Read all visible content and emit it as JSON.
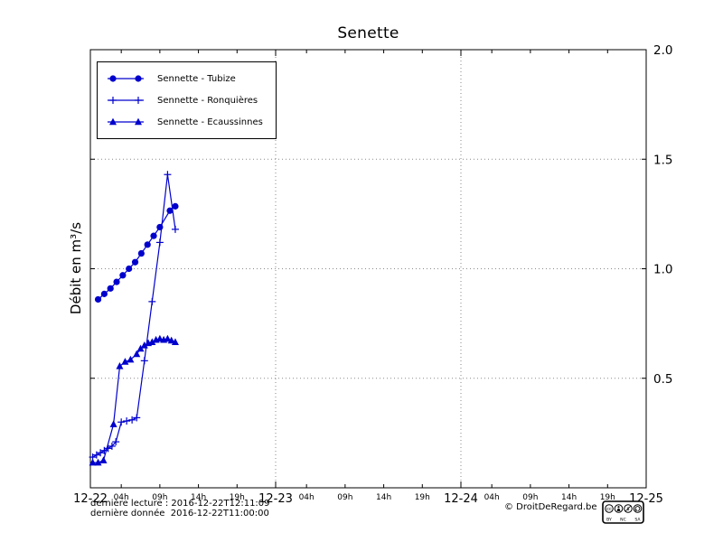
{
  "title": "Senette",
  "y_axis_label": "Débit en m³/s",
  "colors": {
    "series_blue": "#0000cd",
    "grid": "#8a8a8a",
    "axis": "#000000",
    "background": "#ffffff"
  },
  "footer": {
    "line1": "dernière lecture : 2016-12-22T12:11:09",
    "line2": "dernière donnée  2016-12-22T11:00:00",
    "copyright": "© DroitDeRegard.be",
    "license": {
      "by": "BY",
      "nc": "NC",
      "sa": "SA",
      "cc": "cc"
    }
  },
  "chart_data": {
    "type": "line",
    "title": "Senette",
    "ylabel": "Débit en m³/s",
    "x_unit": "hours since 2016-12-22 00:00",
    "xlim_hours": [
      0,
      72
    ],
    "ylim": [
      0,
      2
    ],
    "grid": true,
    "legend_position": "top-left",
    "x_major_ticks": [
      {
        "hour": 0,
        "label": "12-22"
      },
      {
        "hour": 24,
        "label": "12-23"
      },
      {
        "hour": 48,
        "label": "12-24"
      },
      {
        "hour": 72,
        "label": "12-25"
      }
    ],
    "x_minor_ticks": [
      {
        "hour": 4,
        "label": "04h"
      },
      {
        "hour": 9,
        "label": "09h"
      },
      {
        "hour": 14,
        "label": "14h"
      },
      {
        "hour": 19,
        "label": "19h"
      },
      {
        "hour": 28,
        "label": "04h"
      },
      {
        "hour": 33,
        "label": "09h"
      },
      {
        "hour": 38,
        "label": "14h"
      },
      {
        "hour": 43,
        "label": "19h"
      },
      {
        "hour": 52,
        "label": "04h"
      },
      {
        "hour": 57,
        "label": "09h"
      },
      {
        "hour": 62,
        "label": "14h"
      },
      {
        "hour": 67,
        "label": "19h"
      }
    ],
    "y_ticks": [
      {
        "value": 0.5,
        "label": "0.5"
      },
      {
        "value": 1.0,
        "label": "1.0"
      },
      {
        "value": 1.5,
        "label": "1.5"
      },
      {
        "value": 2.0,
        "label": "2.0"
      }
    ],
    "series": [
      {
        "name": "Sennette - Tubize",
        "marker": "circle",
        "color": "#0000cd",
        "points": [
          [
            1.0,
            0.86
          ],
          [
            1.8,
            0.885
          ],
          [
            2.6,
            0.91
          ],
          [
            3.4,
            0.94
          ],
          [
            4.2,
            0.97
          ],
          [
            5.0,
            1.0
          ],
          [
            5.8,
            1.03
          ],
          [
            6.6,
            1.07
          ],
          [
            7.4,
            1.11
          ],
          [
            8.2,
            1.15
          ],
          [
            9.0,
            1.19
          ],
          [
            10.3,
            1.265
          ],
          [
            11.0,
            1.285
          ]
        ]
      },
      {
        "name": "Sennette - Ronquières",
        "marker": "plus",
        "color": "#0000cd",
        "points": [
          [
            0.3,
            0.14
          ],
          [
            0.8,
            0.15
          ],
          [
            1.3,
            0.16
          ],
          [
            1.8,
            0.17
          ],
          [
            2.3,
            0.18
          ],
          [
            2.8,
            0.19
          ],
          [
            3.3,
            0.21
          ],
          [
            4.0,
            0.3
          ],
          [
            4.7,
            0.305
          ],
          [
            5.4,
            0.31
          ],
          [
            6.0,
            0.32
          ],
          [
            7.0,
            0.58
          ],
          [
            8.0,
            0.85
          ],
          [
            9.0,
            1.12
          ],
          [
            10.0,
            1.43
          ],
          [
            11.0,
            1.18
          ]
        ]
      },
      {
        "name": "Sennette - Ecaussinnes",
        "marker": "triangle",
        "color": "#0000cd",
        "points": [
          [
            0.3,
            0.115
          ],
          [
            1.0,
            0.115
          ],
          [
            1.7,
            0.125
          ],
          [
            3.0,
            0.29
          ],
          [
            3.8,
            0.555
          ],
          [
            4.5,
            0.575
          ],
          [
            5.2,
            0.585
          ],
          [
            6.0,
            0.61
          ],
          [
            6.5,
            0.635
          ],
          [
            7.0,
            0.65
          ],
          [
            7.5,
            0.66
          ],
          [
            8.0,
            0.665
          ],
          [
            8.5,
            0.675
          ],
          [
            9.0,
            0.68
          ],
          [
            9.5,
            0.675
          ],
          [
            10.0,
            0.68
          ],
          [
            10.5,
            0.672
          ],
          [
            11.0,
            0.665
          ]
        ]
      }
    ]
  }
}
